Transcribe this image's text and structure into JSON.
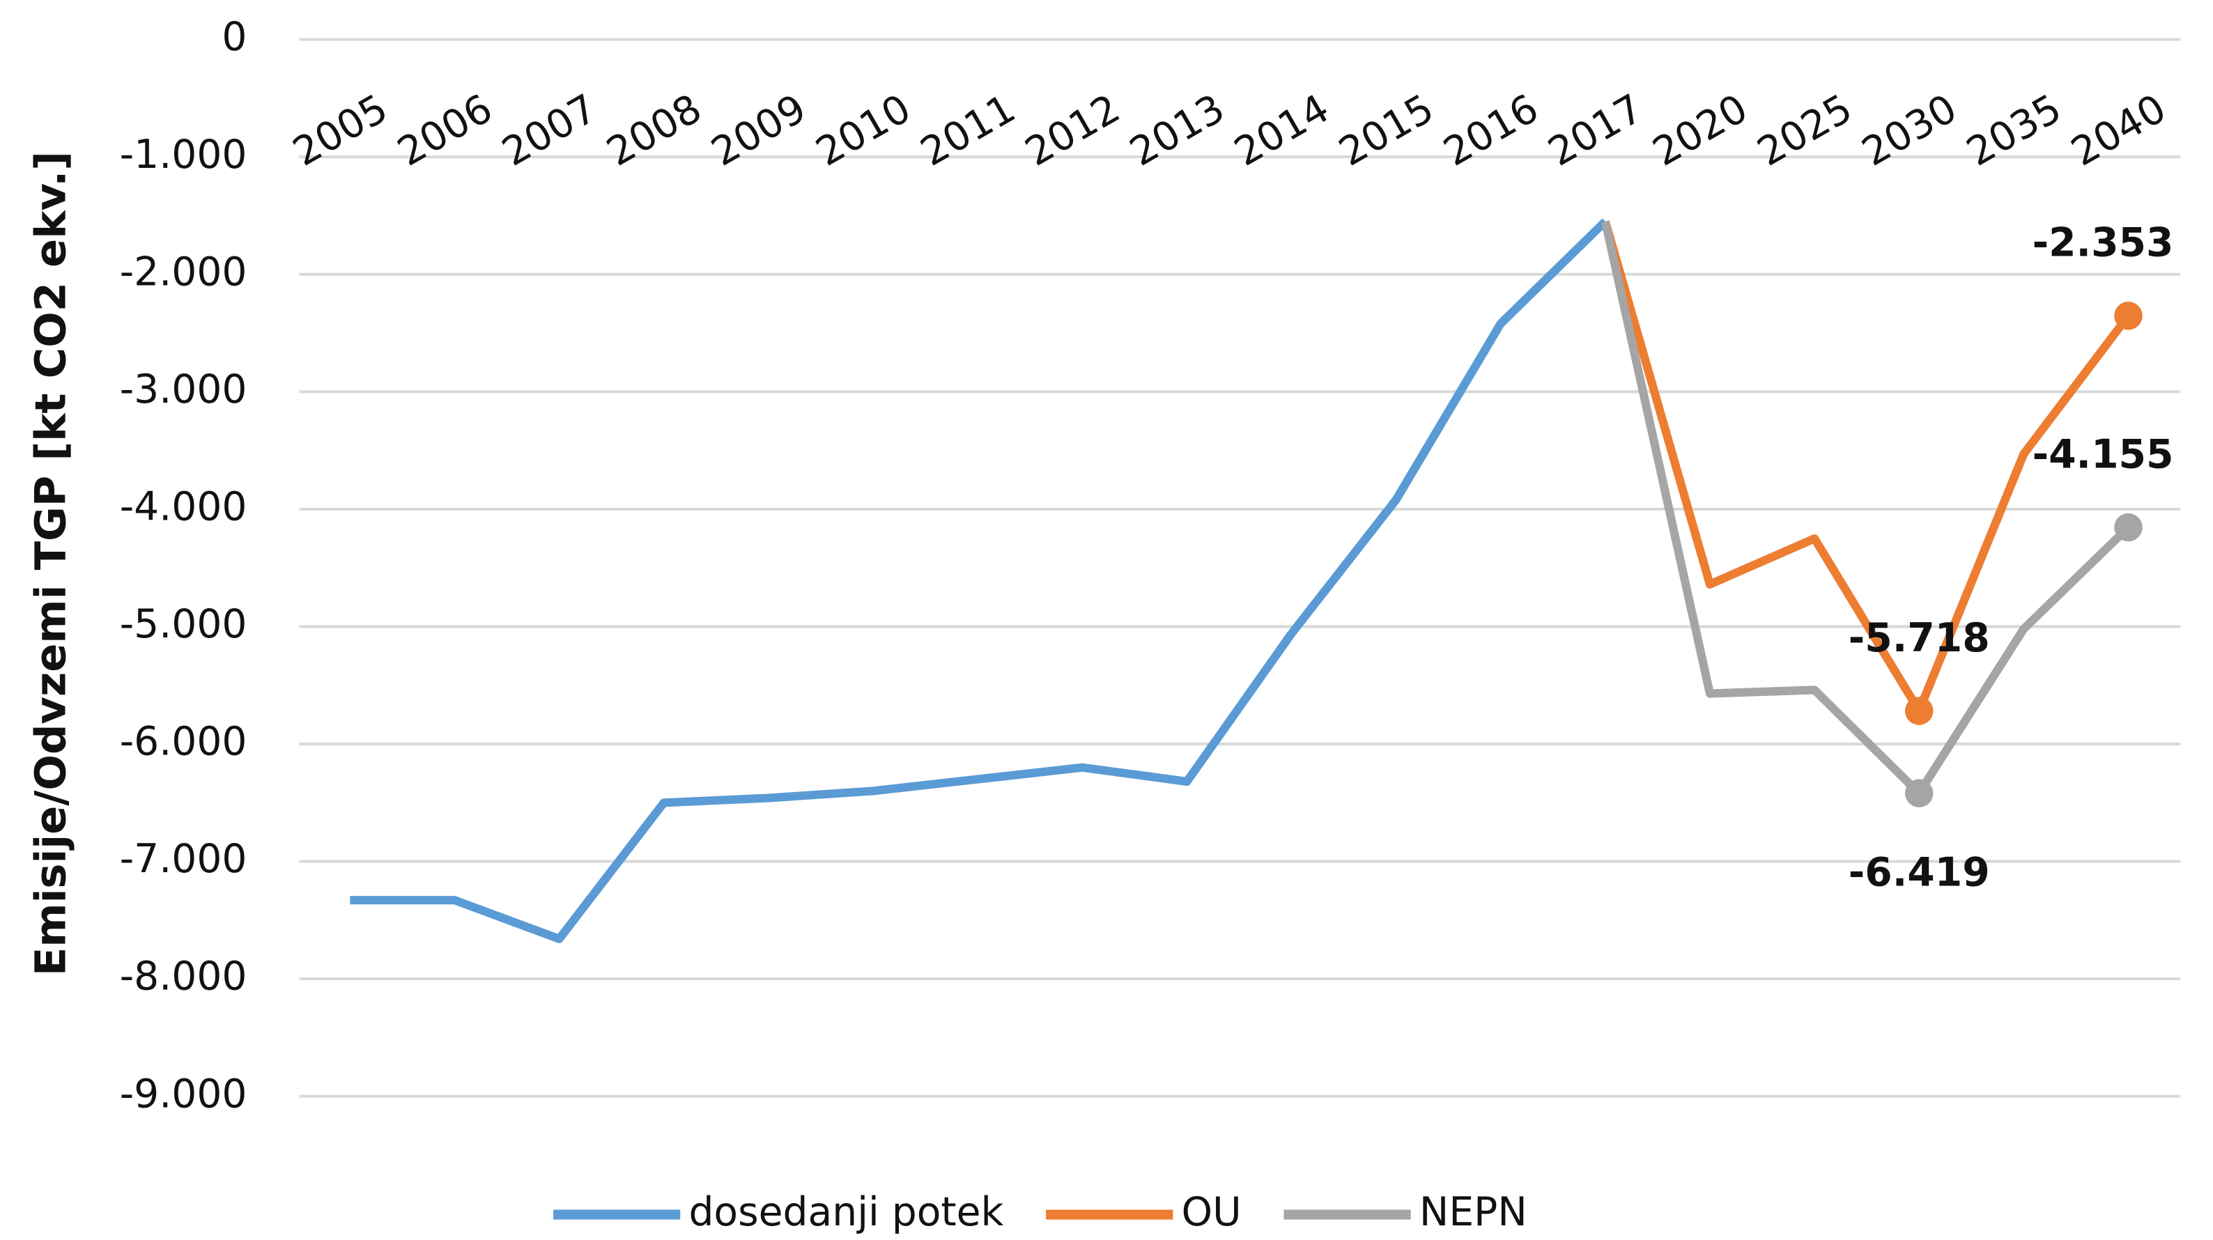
{
  "chart_data": {
    "type": "line",
    "y_label": "Emisije/Odvzemi TGP [kt CO2 ekv.]",
    "categories": [
      "2005",
      "2006",
      "2007",
      "2008",
      "2009",
      "2010",
      "2011",
      "2012",
      "2013",
      "2014",
      "2015",
      "2016",
      "2017",
      "2020",
      "2025",
      "2030",
      "2035",
      "2040"
    ],
    "ylim": [
      -9000,
      0
    ],
    "yticks": [
      0,
      {
        "value": -1000,
        "label": "-1.000"
      },
      {
        "value": -2000,
        "label": "-2.000"
      },
      {
        "value": -3000,
        "label": "-3.000"
      },
      {
        "value": -4000,
        "label": "-4.000"
      },
      {
        "value": -5000,
        "label": "-5.000"
      },
      {
        "value": -6000,
        "label": "-6.000"
      },
      {
        "value": -7000,
        "label": "-7.000"
      },
      {
        "value": -8000,
        "label": "-8.000"
      },
      {
        "value": -9000,
        "label": "-9.000"
      }
    ],
    "grid": true,
    "legend": "bottom",
    "series": [
      {
        "name": "dosedanji potek",
        "color": "#5b9bd5",
        "values": [
          -7330,
          -7330,
          -7660,
          -6500,
          -6460,
          -6400,
          -6300,
          -6200,
          -6320,
          -5060,
          -3920,
          -2420,
          -1550,
          null,
          null,
          null,
          null,
          null
        ]
      },
      {
        "name": "OU",
        "color": "#ed7d31",
        "values": [
          null,
          null,
          null,
          null,
          null,
          null,
          null,
          null,
          null,
          null,
          null,
          null,
          -1550,
          -4640,
          -4250,
          -5718,
          -3530,
          -2353
        ],
        "value_labels": [
          null,
          null,
          null,
          null,
          null,
          null,
          null,
          null,
          null,
          null,
          null,
          null,
          null,
          null,
          null,
          "-5.718",
          null,
          "-2.353"
        ]
      },
      {
        "name": "NEPN",
        "color": "#a5a5a5",
        "values": [
          null,
          null,
          null,
          null,
          null,
          null,
          null,
          null,
          null,
          null,
          null,
          null,
          -1550,
          -5570,
          -5540,
          -6419,
          -5020,
          -4155
        ],
        "value_labels": [
          null,
          null,
          null,
          null,
          null,
          null,
          null,
          null,
          null,
          null,
          null,
          null,
          null,
          null,
          null,
          "-6.419",
          null,
          "-4.155"
        ]
      }
    ]
  }
}
